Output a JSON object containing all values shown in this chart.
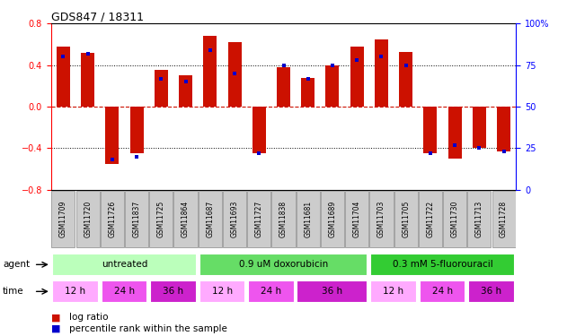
{
  "title": "GDS847 / 18311",
  "samples": [
    "GSM11709",
    "GSM11720",
    "GSM11726",
    "GSM11837",
    "GSM11725",
    "GSM11864",
    "GSM11687",
    "GSM11693",
    "GSM11727",
    "GSM11838",
    "GSM11681",
    "GSM11689",
    "GSM11704",
    "GSM11703",
    "GSM11705",
    "GSM11722",
    "GSM11730",
    "GSM11713",
    "GSM11728"
  ],
  "log_ratios": [
    0.58,
    0.52,
    -0.55,
    -0.45,
    0.35,
    0.3,
    0.68,
    0.62,
    -0.45,
    0.38,
    0.28,
    0.4,
    0.58,
    0.65,
    0.53,
    -0.45,
    -0.5,
    -0.4,
    -0.43
  ],
  "percentile_ranks": [
    80,
    82,
    18,
    20,
    67,
    65,
    84,
    70,
    22,
    75,
    67,
    75,
    78,
    80,
    75,
    22,
    27,
    25,
    23
  ],
  "agent_groups": [
    {
      "label": "untreated",
      "start": 0,
      "end": 6,
      "color": "#bbffbb"
    },
    {
      "label": "0.9 uM doxorubicin",
      "start": 6,
      "end": 13,
      "color": "#66dd66"
    },
    {
      "label": "0.3 mM 5-fluorouracil",
      "start": 13,
      "end": 19,
      "color": "#33cc33"
    }
  ],
  "time_groups": [
    {
      "label": "12 h",
      "start": 0,
      "end": 2,
      "color": "#ffaaff"
    },
    {
      "label": "24 h",
      "start": 2,
      "end": 4,
      "color": "#ee55ee"
    },
    {
      "label": "36 h",
      "start": 4,
      "end": 6,
      "color": "#cc22cc"
    },
    {
      "label": "12 h",
      "start": 6,
      "end": 8,
      "color": "#ffaaff"
    },
    {
      "label": "24 h",
      "start": 8,
      "end": 10,
      "color": "#ee55ee"
    },
    {
      "label": "36 h",
      "start": 10,
      "end": 13,
      "color": "#cc22cc"
    },
    {
      "label": "12 h",
      "start": 13,
      "end": 15,
      "color": "#ffaaff"
    },
    {
      "label": "24 h",
      "start": 15,
      "end": 17,
      "color": "#ee55ee"
    },
    {
      "label": "36 h",
      "start": 17,
      "end": 19,
      "color": "#cc22cc"
    }
  ],
  "bar_color": "#cc1100",
  "dot_color": "#0000cc",
  "ylim_lr": [
    -0.8,
    0.8
  ],
  "yticks_lr": [
    -0.8,
    -0.4,
    0.0,
    0.4,
    0.8
  ],
  "right_yticks_pct": [
    0,
    25,
    50,
    75,
    100
  ],
  "right_ytick_labels": [
    "0",
    "25",
    "50",
    "75",
    "100%"
  ],
  "hline_color": "#cc1100",
  "legend_log_ratio_color": "#cc1100",
  "legend_percentile_color": "#0000cc",
  "sample_box_color": "#cccccc",
  "sample_box_edge": "#888888"
}
